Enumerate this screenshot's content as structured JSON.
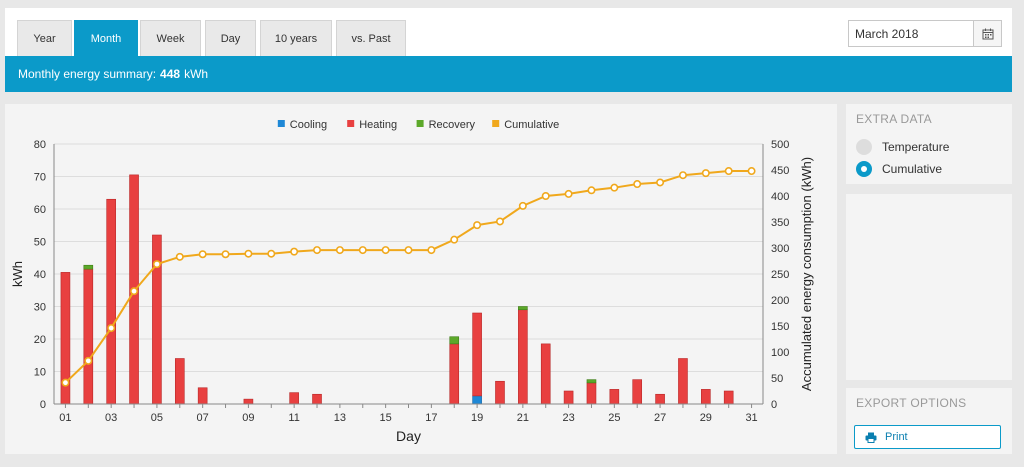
{
  "tabs": [
    {
      "label": "Year",
      "active": false
    },
    {
      "label": "Month",
      "active": true
    },
    {
      "label": "Week",
      "active": false
    },
    {
      "label": "Day",
      "active": false
    },
    {
      "label": "10 years",
      "active": false
    },
    {
      "label": "vs. Past",
      "active": false
    }
  ],
  "date_picker": {
    "value": "March 2018"
  },
  "banner": {
    "prefix": "Monthly energy summary:",
    "value": "448",
    "unit": "kWh"
  },
  "extra_data": {
    "title": "EXTRA DATA",
    "options": [
      {
        "label": "Temperature",
        "selected": false
      },
      {
        "label": "Cumulative",
        "selected": true
      }
    ]
  },
  "export": {
    "title": "EXPORT OPTIONS",
    "print_label": "Print"
  },
  "colors": {
    "cooling": "#1e88d6",
    "heating": "#e84040",
    "recovery": "#5ca82a",
    "cumulative": "#f0a81c",
    "accent": "#0b9ac9"
  },
  "chart_data": {
    "type": "bar",
    "xlabel": "Day",
    "ylabel": "kWh",
    "y2label": "Accumulated energy consumption (kWh)",
    "ylim": [
      0,
      80
    ],
    "y2lim": [
      0,
      500
    ],
    "yticks": [
      0,
      10,
      20,
      30,
      40,
      50,
      60,
      70,
      80
    ],
    "y2ticks": [
      0,
      50,
      100,
      150,
      200,
      250,
      300,
      350,
      400,
      450,
      500
    ],
    "legend": [
      "Cooling",
      "Heating",
      "Recovery",
      "Cumulative"
    ],
    "legend_position": "top-center",
    "grid": true,
    "stacked": true,
    "categories": [
      "01",
      "02",
      "03",
      "04",
      "05",
      "06",
      "07",
      "08",
      "09",
      "10",
      "11",
      "12",
      "13",
      "14",
      "15",
      "16",
      "17",
      "18",
      "19",
      "20",
      "21",
      "22",
      "23",
      "24",
      "25",
      "26",
      "27",
      "28",
      "29",
      "30",
      "31"
    ],
    "x_tick_labels": [
      "01",
      "03",
      "05",
      "07",
      "09",
      "11",
      "13",
      "15",
      "17",
      "19",
      "21",
      "23",
      "25",
      "27",
      "29",
      "31"
    ],
    "series": [
      {
        "name": "Cooling",
        "axis": "left",
        "values": [
          0,
          0,
          0,
          0,
          0,
          0,
          0,
          0,
          0,
          0,
          0,
          0,
          0,
          0,
          0,
          0,
          0,
          0,
          2.5,
          0,
          0,
          0,
          0,
          0,
          0,
          0,
          0,
          0,
          0,
          0,
          0
        ]
      },
      {
        "name": "Heating",
        "axis": "left",
        "values": [
          40.5,
          41.5,
          63,
          70.5,
          52,
          14,
          5,
          0,
          1.5,
          0,
          3.5,
          3,
          0,
          0,
          0,
          0,
          0,
          18.5,
          25.5,
          7,
          29,
          18.5,
          4,
          6.5,
          4.5,
          7.5,
          3,
          14,
          4.5,
          4,
          0
        ]
      },
      {
        "name": "Recovery",
        "axis": "left",
        "values": [
          0,
          1.2,
          0,
          0,
          0,
          0,
          0,
          0,
          0,
          0,
          0,
          0,
          0,
          0,
          0,
          0,
          0,
          2.2,
          0,
          0,
          1,
          0,
          0,
          1,
          0,
          0,
          0,
          0,
          0,
          0,
          0
        ]
      },
      {
        "name": "Cumulative",
        "axis": "right",
        "type": "line",
        "values": [
          41,
          83,
          146,
          217,
          269,
          283,
          288,
          288,
          289,
          289,
          293,
          296,
          296,
          296,
          296,
          296,
          296,
          316,
          344,
          351,
          381,
          400,
          404,
          411,
          416,
          423,
          426,
          440,
          444,
          448,
          448
        ]
      }
    ]
  }
}
